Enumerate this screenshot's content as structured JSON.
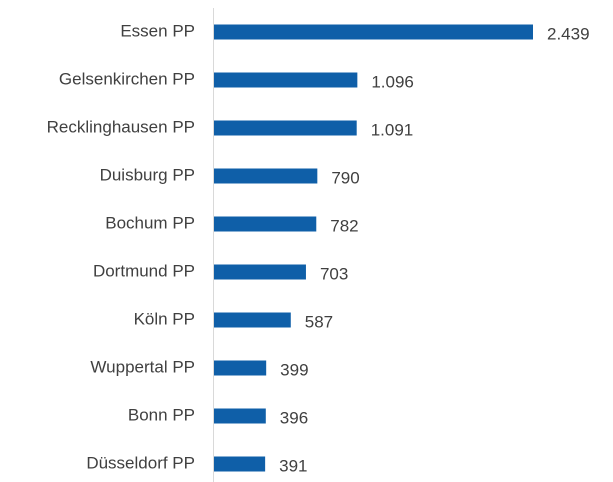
{
  "chart_data": {
    "type": "barh",
    "categories": [
      "Essen PP",
      "Gelsenkirchen PP",
      "Recklinghausen PP",
      "Duisburg PP",
      "Bochum PP",
      "Dortmund PP",
      "Köln PP",
      "Wuppertal PP",
      "Bonn PP",
      "Düsseldorf PP"
    ],
    "values": [
      2439,
      1096,
      1091,
      790,
      782,
      703,
      587,
      399,
      396,
      391
    ],
    "value_labels": [
      "2.439",
      "1.096",
      "1.091",
      "790",
      "782",
      "703",
      "587",
      "399",
      "396",
      "391"
    ],
    "color": "#0f5fa8"
  }
}
